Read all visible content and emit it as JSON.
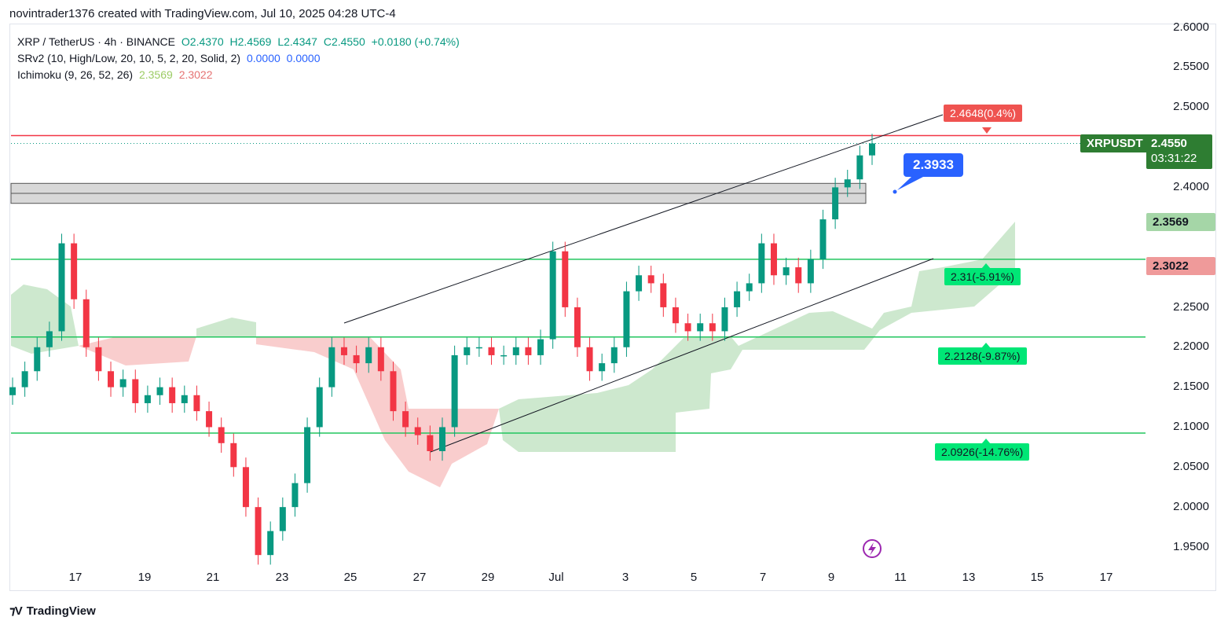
{
  "caption": "novintrader1376 created with TradingView.com, Jul 10, 2025 04:28 UTC-4",
  "legend": {
    "symbol": "XRP / TetherUS · 4h · BINANCE",
    "o": "O2.4370",
    "h": "H2.4569",
    "l": "L2.4347",
    "c": "C2.4550",
    "change": "+0.0180 (+0.74%)",
    "srv2": "SRv2 (10, High/Low, 20, 10, 5, 2, 20, Solid, 2)",
    "srv2_v1": "0.0000",
    "srv2_v2": "0.0000",
    "ichimoku": "Ichimoku (9, 26, 52, 26)",
    "ichi_v1": "2.3569",
    "ichi_v2": "2.3022"
  },
  "price_axis": {
    "ticks": [
      "2.6000",
      "2.5500",
      "2.5000",
      "2.4000",
      "2.2500",
      "2.2000",
      "2.1500",
      "2.1000",
      "2.0500",
      "2.0000",
      "1.9500"
    ],
    "symbol_tag": "XRPUSDT",
    "last_price": "2.4550",
    "countdown": "03:31:22",
    "tag_senkou_a": "2.3569",
    "tag_senkou_b": "2.3022"
  },
  "time_axis": {
    "ticks": [
      "17",
      "19",
      "21",
      "23",
      "25",
      "27",
      "29",
      "Jul",
      "3",
      "5",
      "7",
      "9",
      "11",
      "13",
      "15",
      "17"
    ]
  },
  "annotations": {
    "resistance": "2.4648(0.4%)",
    "callout": "2.3933",
    "s1": "2.31(-5.91%)",
    "s2": "2.2128(-9.87%)",
    "s3": "2.0926(-14.76%)"
  },
  "colors": {
    "up": "#089981",
    "down": "#f23645",
    "green_line": "#22c55e",
    "red_line": "#f23645",
    "cloud_up": "#c8e6c9",
    "cloud_down": "#f8c8c8",
    "callout": "#2962ff",
    "label_green": "#00e676",
    "label_red": "#ef5350"
  },
  "footer": {
    "brand": "TradingView"
  },
  "chart_data": {
    "type": "candlestick",
    "title": "XRP / TetherUS · 4h · BINANCE",
    "ylim": [
      1.93,
      2.61
    ],
    "y_ticks": [
      2.6,
      2.55,
      2.5,
      2.4,
      2.25,
      2.2,
      2.15,
      2.1,
      2.05,
      2.0,
      1.95
    ],
    "x_ticks": [
      "17",
      "19",
      "21",
      "23",
      "25",
      "27",
      "29",
      "Jul",
      "3",
      "5",
      "7",
      "9",
      "11",
      "13",
      "15",
      "17"
    ],
    "horizontal_levels": [
      {
        "value": 2.4648,
        "label": "2.4648(0.4%)",
        "color": "red"
      },
      {
        "value": 2.31,
        "label": "2.31(-5.91%)",
        "color": "green"
      },
      {
        "value": 2.2128,
        "label": "2.2128(-9.87%)",
        "color": "green"
      },
      {
        "value": 2.0926,
        "label": "2.0926(-14.76%)",
        "color": "green"
      }
    ],
    "zone": {
      "from": 2.38,
      "to": 2.405
    },
    "last_price": 2.455,
    "candles_close_sampled": [
      2.15,
      2.17,
      2.2,
      2.22,
      2.33,
      2.26,
      2.2,
      2.17,
      2.15,
      2.16,
      2.13,
      2.14,
      2.15,
      2.13,
      2.14,
      2.12,
      2.1,
      2.08,
      2.05,
      2.0,
      1.94,
      1.97,
      2.0,
      2.03,
      2.1,
      2.15,
      2.2,
      2.19,
      2.18,
      2.2,
      2.17,
      2.12,
      2.1,
      2.09,
      2.07,
      2.1,
      2.19,
      2.2,
      2.2,
      2.19,
      2.19,
      2.2,
      2.19,
      2.21,
      2.32,
      2.25,
      2.2,
      2.17,
      2.18,
      2.2,
      2.27,
      2.29,
      2.28,
      2.25,
      2.23,
      2.22,
      2.23,
      2.22,
      2.25,
      2.27,
      2.28,
      2.33,
      2.29,
      2.3,
      2.28,
      2.31,
      2.36,
      2.4,
      2.41,
      2.44,
      2.455
    ]
  }
}
